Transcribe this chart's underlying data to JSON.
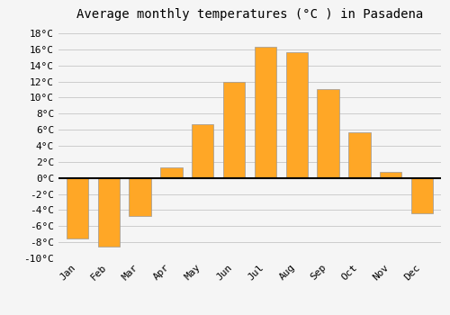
{
  "title": "Average monthly temperatures (°C ) in Pasadena",
  "months": [
    "Jan",
    "Feb",
    "Mar",
    "Apr",
    "May",
    "Jun",
    "Jul",
    "Aug",
    "Sep",
    "Oct",
    "Nov",
    "Dec"
  ],
  "values": [
    -7.5,
    -8.5,
    -4.7,
    1.3,
    6.7,
    12.0,
    16.3,
    15.6,
    11.0,
    5.7,
    0.8,
    -4.4
  ],
  "bar_color": "#FFA726",
  "bar_edge_color": "#999999",
  "background_color": "#f5f5f5",
  "grid_color": "#cccccc",
  "ylim": [
    -10,
    19
  ],
  "yticks": [
    -10,
    -8,
    -6,
    -4,
    -2,
    0,
    2,
    4,
    6,
    8,
    10,
    12,
    14,
    16,
    18
  ],
  "zero_line_color": "#000000",
  "title_fontsize": 10,
  "tick_fontsize": 8,
  "font_family": "monospace"
}
